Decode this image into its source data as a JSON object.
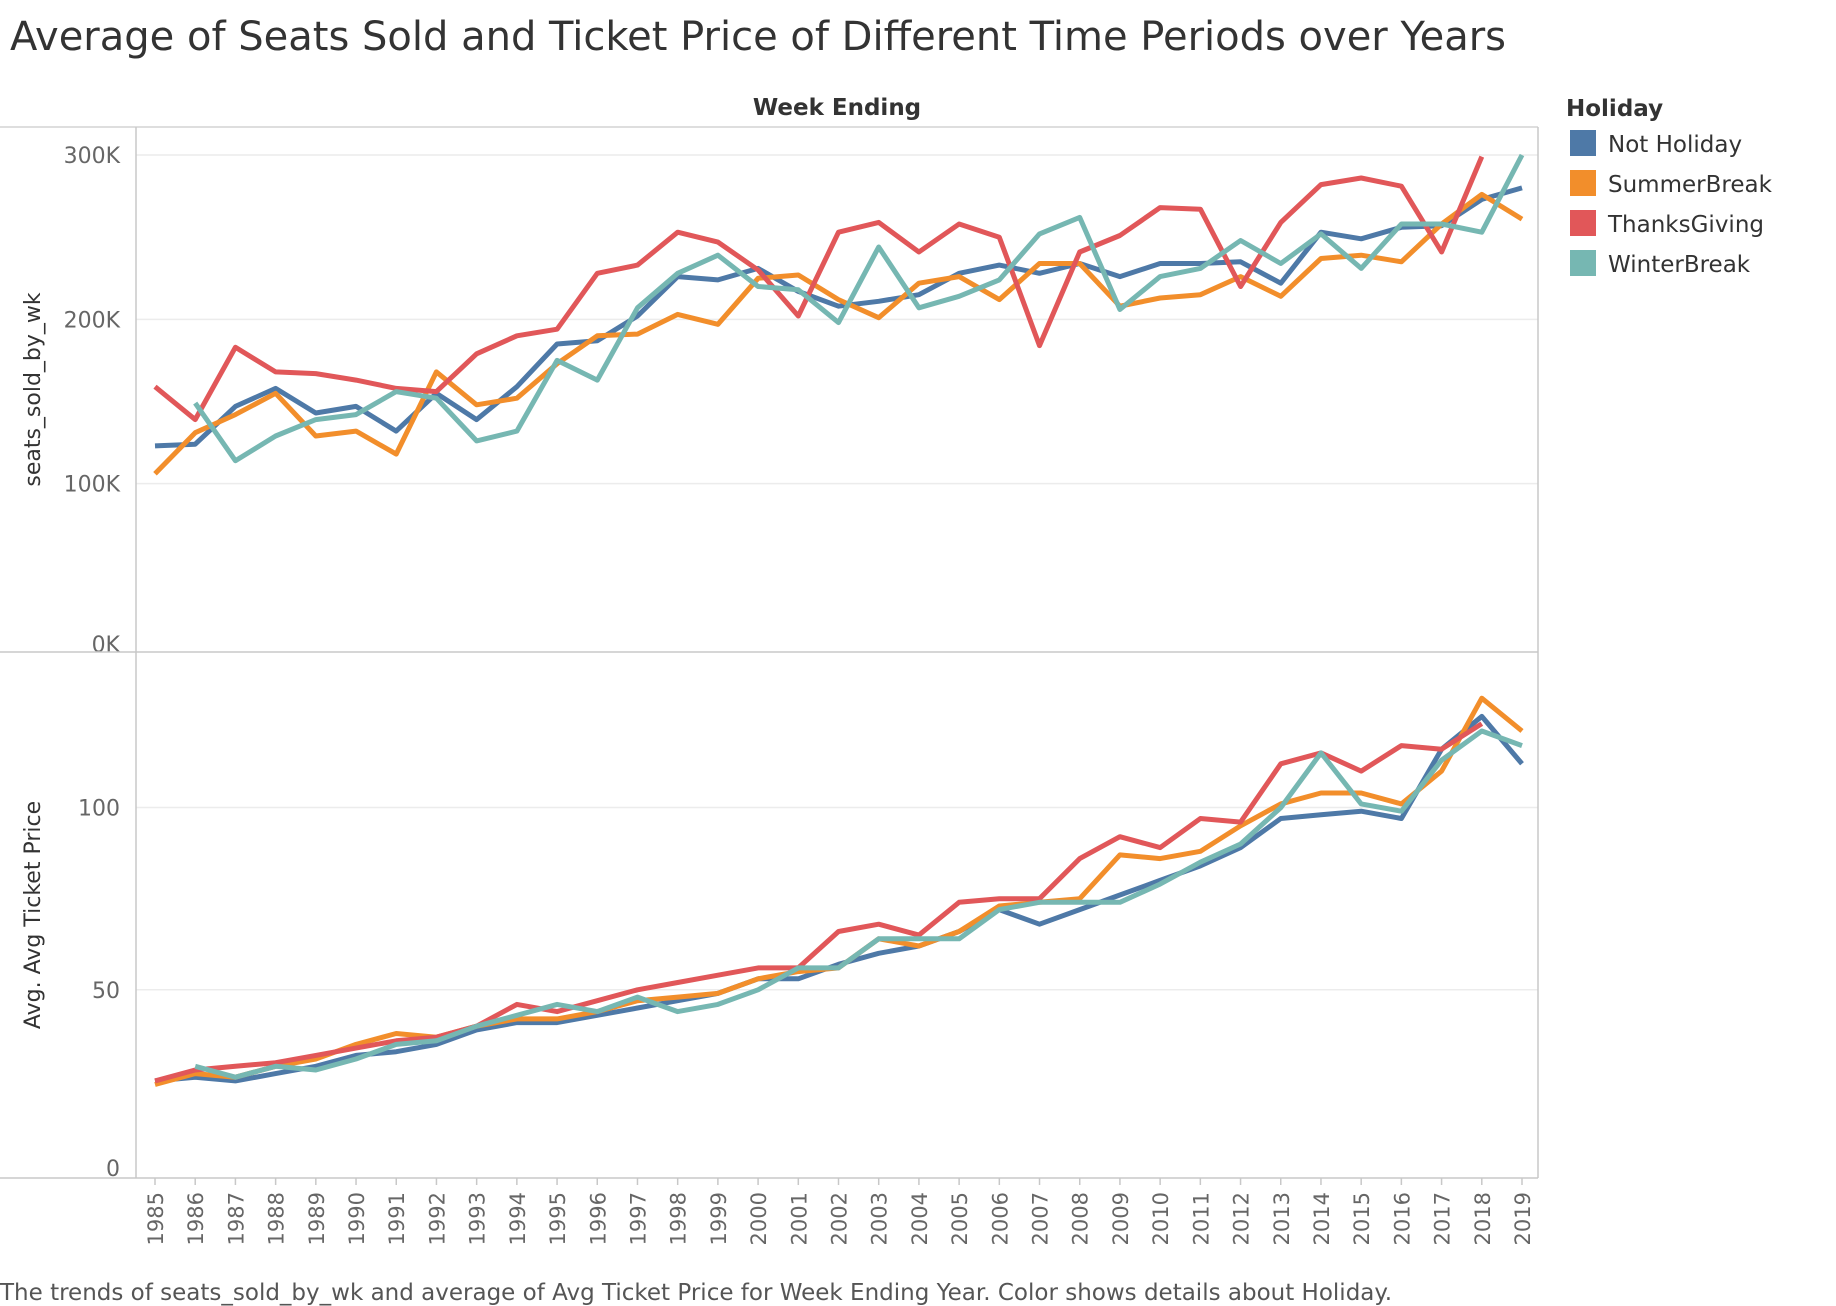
{
  "chart_data": {
    "type": "line",
    "title": "Average of Seats Sold and Ticket Price of Different Time Periods over Years",
    "column_header": "Week Ending",
    "footnote": "The trends of seats_sold_by_wk and average of Avg Ticket Price for Week Ending Year.  Color shows details about Holiday.",
    "legend": {
      "title": "Holiday",
      "position": "top-right"
    },
    "grid": true,
    "x": [
      1985,
      1986,
      1987,
      1988,
      1989,
      1990,
      1991,
      1992,
      1993,
      1994,
      1995,
      1996,
      1997,
      1998,
      1999,
      2000,
      2001,
      2002,
      2003,
      2004,
      2005,
      2006,
      2007,
      2008,
      2009,
      2010,
      2011,
      2012,
      2013,
      2014,
      2015,
      2016,
      2017,
      2018,
      2019
    ],
    "x_tick_labels": [
      "1985",
      "1986",
      "1987",
      "1988",
      "1989",
      "1990",
      "1991",
      "1992",
      "1993",
      "1994",
      "1995",
      "1996",
      "1997",
      "1998",
      "1999",
      "2000",
      "2001",
      "2002",
      "2003",
      "2004",
      "2005",
      "2006",
      "2007",
      "2008",
      "2009",
      "2010",
      "2011",
      "2012",
      "2013",
      "2014",
      "2015",
      "2016",
      "2017",
      "2018",
      "2019"
    ],
    "panels": [
      {
        "ylabel": "seats_sold_by_wk",
        "ylim": [
          0,
          300000
        ],
        "yticks": [
          0,
          100000,
          200000,
          300000
        ],
        "ytick_labels": [
          "0K",
          "100K",
          "200K",
          "300K"
        ],
        "series": [
          {
            "name": "Not Holiday",
            "color": "#4e79a7",
            "values": [
              123000,
              124000,
              147000,
              158000,
              143000,
              147000,
              132000,
              155000,
              139000,
              159000,
              185000,
              187000,
              202000,
              226000,
              224000,
              231000,
              217000,
              208000,
              211000,
              215000,
              228000,
              233000,
              228000,
              234000,
              226000,
              234000,
              234000,
              235000,
              222000,
              253000,
              249000,
              256000,
              257000,
              273000,
              280000
            ]
          },
          {
            "name": "SummerBreak",
            "color": "#f28e2b",
            "values": [
              106000,
              131000,
              142000,
              155000,
              129000,
              132000,
              118000,
              168000,
              148000,
              152000,
              173000,
              190000,
              191000,
              203000,
              197000,
              225000,
              227000,
              212000,
              201000,
              222000,
              226000,
              212000,
              234000,
              234000,
              208000,
              213000,
              215000,
              226000,
              214000,
              237000,
              239000,
              235000,
              258000,
              276000,
              261000
            ]
          },
          {
            "name": "ThanksGiving",
            "color": "#e15759",
            "values": [
              159000,
              139000,
              183000,
              168000,
              167000,
              163000,
              158000,
              156000,
              179000,
              190000,
              194000,
              228000,
              233000,
              253000,
              247000,
              230000,
              202000,
              253000,
              259000,
              241000,
              258000,
              250000,
              184000,
              241000,
              251000,
              268000,
              267000,
              220000,
              259000,
              282000,
              286000,
              281000,
              241000,
              299000,
              null
            ]
          },
          {
            "name": "WinterBreak",
            "color": "#76b7b2",
            "values": [
              null,
              149000,
              114000,
              129000,
              139000,
              142000,
              156000,
              152000,
              126000,
              132000,
              175000,
              163000,
              207000,
              228000,
              239000,
              220000,
              218000,
              198000,
              244000,
              207000,
              214000,
              224000,
              252000,
              262000,
              206000,
              226000,
              231000,
              248000,
              234000,
              252000,
              231000,
              258000,
              258000,
              253000,
              300000
            ]
          }
        ]
      },
      {
        "ylabel": "Avg. Avg Ticket Price",
        "ylim": [
          0,
          135
        ],
        "yticks": [
          0,
          50,
          100
        ],
        "ytick_labels": [
          "0",
          "50",
          "100"
        ],
        "series": [
          {
            "name": "Not Holiday",
            "color": "#4e79a7",
            "values": [
              25,
              26,
              25,
              27,
              29,
              32,
              33,
              35,
              39,
              41,
              41,
              43,
              45,
              47,
              49,
              53,
              53,
              57,
              60,
              62,
              66,
              72,
              68,
              72,
              76,
              80,
              84,
              89,
              97,
              98,
              99,
              97,
              116,
              125,
              112
            ]
          },
          {
            "name": "SummerBreak",
            "color": "#f28e2b",
            "values": [
              24,
              27,
              26,
              29,
              31,
              35,
              38,
              37,
              40,
              42,
              42,
              44,
              47,
              48,
              49,
              53,
              55,
              56,
              64,
              62,
              66,
              73,
              74,
              75,
              87,
              86,
              88,
              95,
              101,
              104,
              104,
              101,
              110,
              130,
              121
            ]
          },
          {
            "name": "ThanksGiving",
            "color": "#e15759",
            "values": [
              25,
              28,
              29,
              30,
              32,
              34,
              36,
              37,
              40,
              46,
              44,
              47,
              50,
              52,
              54,
              56,
              56,
              66,
              68,
              65,
              74,
              75,
              75,
              86,
              92,
              89,
              97,
              96,
              112,
              115,
              110,
              117,
              116,
              123,
              null
            ]
          },
          {
            "name": "WinterBreak",
            "color": "#76b7b2",
            "values": [
              null,
              29,
              26,
              29,
              28,
              31,
              35,
              36,
              40,
              43,
              46,
              44,
              48,
              44,
              46,
              50,
              56,
              56,
              64,
              64,
              64,
              72,
              74,
              74,
              74,
              79,
              85,
              90,
              100,
              115,
              101,
              99,
              113,
              121,
              117
            ]
          }
        ]
      }
    ]
  }
}
